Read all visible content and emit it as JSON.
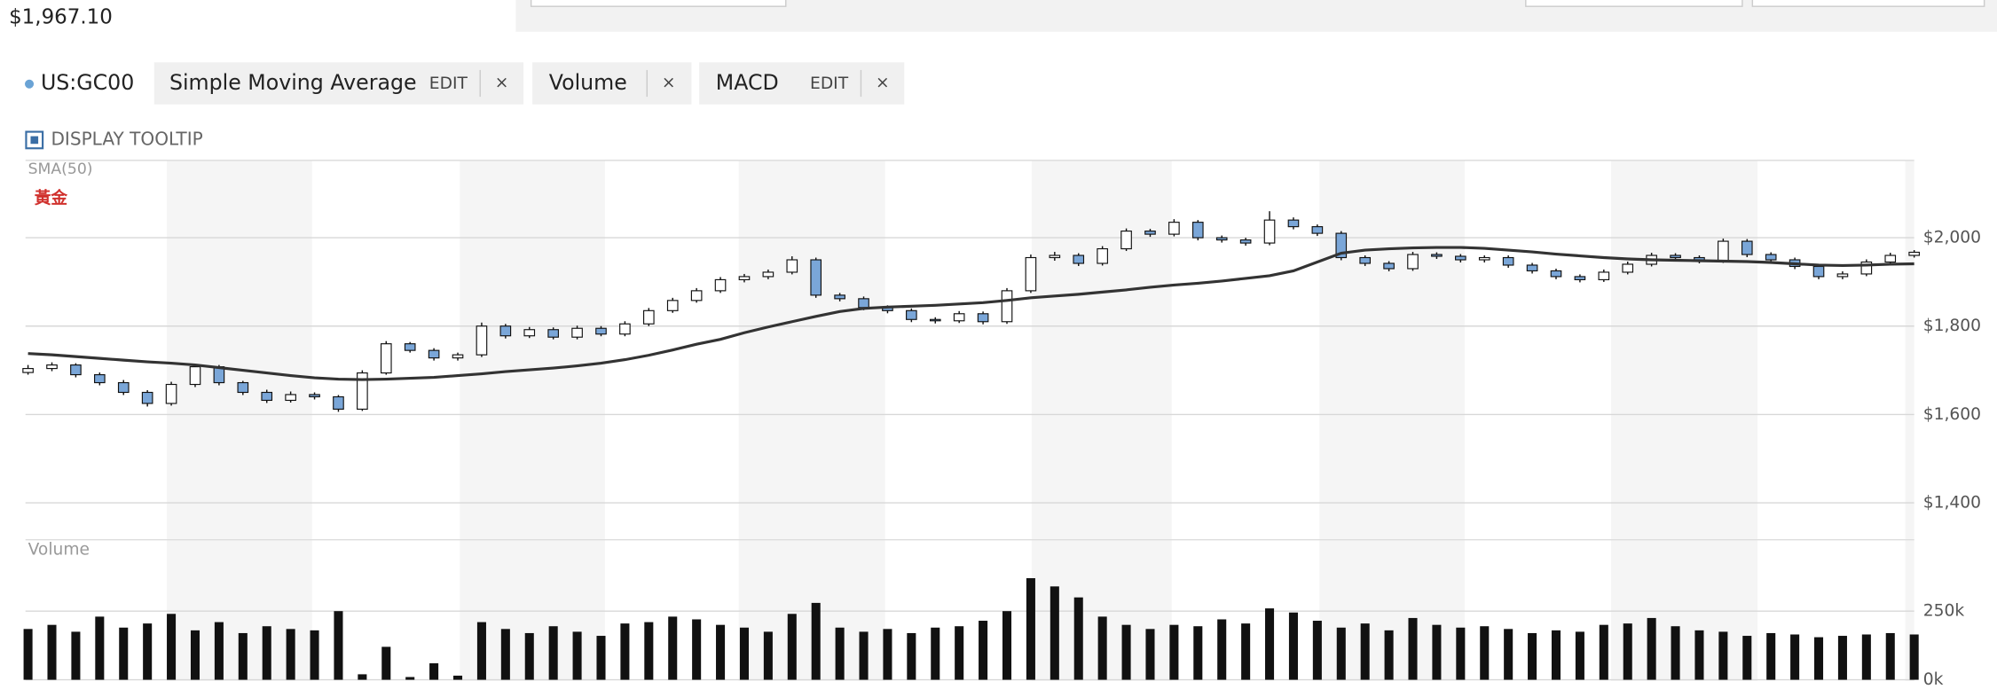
{
  "header": {
    "price": "$1,967.10"
  },
  "legend": {
    "symbol": "US:GC00",
    "chips": [
      {
        "name": "Simple Moving Average",
        "edit": "EDIT",
        "close": "×"
      },
      {
        "name": "Volume",
        "close": "×"
      },
      {
        "name": "MACD",
        "edit": "EDIT",
        "close": "×"
      }
    ]
  },
  "tooltip_toggle": "DISPLAY TOOLTIP",
  "chart_data": [
    {
      "type": "candlestick",
      "annotation": "黃金",
      "up_color": "#ffffff",
      "down_color": "#7aa6d8",
      "open": [
        1695,
        1704,
        1712,
        1690,
        1672,
        1650,
        1625,
        1668,
        1708,
        1672,
        1650,
        1632,
        1645,
        1640,
        1612,
        1694,
        1760,
        1745,
        1728,
        1735,
        1800,
        1778,
        1792,
        1775,
        1795,
        1782,
        1805,
        1835,
        1858,
        1880,
        1905,
        1912,
        1922,
        1950,
        1870,
        1862,
        1842,
        1835,
        1815,
        1812,
        1828,
        1810,
        1880,
        1955,
        1960,
        1942,
        1975,
        2015,
        2008,
        2035,
        2000,
        1995,
        1988,
        2040,
        2025,
        2010,
        1955,
        1942,
        1930,
        1962,
        1958,
        1950,
        1955,
        1938,
        1925,
        1912,
        1905,
        1922,
        1940,
        1960,
        1955,
        1948,
        1992,
        1962,
        1950,
        1935,
        1912,
        1918,
        1945,
        1960
      ],
      "high": [
        1712,
        1718,
        1716,
        1695,
        1678,
        1655,
        1674,
        1714,
        1712,
        1676,
        1656,
        1652,
        1650,
        1644,
        1700,
        1766,
        1764,
        1750,
        1740,
        1808,
        1805,
        1798,
        1797,
        1801,
        1800,
        1811,
        1841,
        1864,
        1886,
        1911,
        1918,
        1928,
        1958,
        1955,
        1875,
        1867,
        1847,
        1840,
        1820,
        1834,
        1833,
        1886,
        1962,
        1968,
        1965,
        1981,
        2021,
        2020,
        2042,
        2040,
        2005,
        2000,
        2060,
        2046,
        2030,
        2015,
        1960,
        1947,
        1968,
        1967,
        1963,
        1960,
        1960,
        1943,
        1930,
        1917,
        1928,
        1946,
        1966,
        1965,
        1960,
        1998,
        1997,
        1967,
        1955,
        1940,
        1924,
        1951,
        1966,
        1972
      ],
      "low": [
        1690,
        1698,
        1684,
        1666,
        1644,
        1618,
        1620,
        1662,
        1666,
        1644,
        1626,
        1627,
        1634,
        1606,
        1608,
        1690,
        1740,
        1722,
        1722,
        1730,
        1772,
        1773,
        1770,
        1770,
        1777,
        1777,
        1800,
        1830,
        1853,
        1875,
        1899,
        1906,
        1917,
        1864,
        1856,
        1836,
        1829,
        1809,
        1806,
        1807,
        1804,
        1805,
        1875,
        1948,
        1936,
        1937,
        1970,
        2002,
        2003,
        1994,
        1989,
        1982,
        1983,
        2019,
        2004,
        1949,
        1936,
        1924,
        1925,
        1952,
        1944,
        1944,
        1932,
        1919,
        1906,
        1899,
        1900,
        1917,
        1935,
        1949,
        1942,
        1943,
        1956,
        1944,
        1929,
        1906,
        1906,
        1913,
        1940,
        1955
      ],
      "close": [
        1704,
        1712,
        1690,
        1672,
        1650,
        1625,
        1668,
        1708,
        1672,
        1650,
        1632,
        1645,
        1640,
        1612,
        1694,
        1760,
        1745,
        1728,
        1735,
        1800,
        1778,
        1792,
        1775,
        1795,
        1782,
        1805,
        1835,
        1858,
        1880,
        1905,
        1912,
        1922,
        1950,
        1870,
        1862,
        1842,
        1835,
        1815,
        1812,
        1828,
        1810,
        1880,
        1955,
        1960,
        1942,
        1975,
        2015,
        2008,
        2035,
        2000,
        1995,
        1988,
        2040,
        2025,
        2010,
        1955,
        1942,
        1930,
        1962,
        1958,
        1950,
        1955,
        1938,
        1925,
        1912,
        1905,
        1922,
        1940,
        1960,
        1955,
        1948,
        1992,
        1962,
        1950,
        1935,
        1912,
        1918,
        1945,
        1960,
        1967.1
      ],
      "series": [
        {
          "name": "SMA(50)",
          "color": "#333333",
          "values": [
            1738,
            1735,
            1731,
            1727,
            1723,
            1719,
            1716,
            1712,
            1706,
            1700,
            1694,
            1688,
            1683,
            1680,
            1679,
            1680,
            1682,
            1684,
            1688,
            1692,
            1697,
            1701,
            1705,
            1710,
            1716,
            1724,
            1734,
            1746,
            1759,
            1770,
            1785,
            1798,
            1810,
            1822,
            1833,
            1840,
            1843,
            1845,
            1847,
            1850,
            1853,
            1858,
            1864,
            1868,
            1872,
            1877,
            1882,
            1888,
            1893,
            1897,
            1902,
            1908,
            1914,
            1925,
            1945,
            1965,
            1972,
            1975,
            1977,
            1978,
            1978,
            1976,
            1972,
            1968,
            1963,
            1959,
            1955,
            1952,
            1950,
            1949,
            1948,
            1947,
            1946,
            1944,
            1941,
            1938,
            1937,
            1938,
            1940,
            1941
          ]
        }
      ],
      "ylim": [
        1377,
        2175
      ],
      "yticks": [
        {
          "value": 1400,
          "label": "$1,400"
        },
        {
          "value": 1600,
          "label": "$1,600"
        },
        {
          "value": 1800,
          "label": "$1,800"
        },
        {
          "value": 2000,
          "label": "$2,000"
        }
      ],
      "grid": true
    },
    {
      "type": "bar",
      "title": "Volume",
      "color": "#111111",
      "values": [
        185000,
        200000,
        175000,
        230000,
        190000,
        205000,
        240000,
        180000,
        210000,
        170000,
        195000,
        185000,
        180000,
        250000,
        20000,
        120000,
        10000,
        60000,
        15000,
        210000,
        185000,
        170000,
        195000,
        175000,
        160000,
        205000,
        210000,
        230000,
        220000,
        200000,
        190000,
        175000,
        240000,
        280000,
        190000,
        175000,
        185000,
        170000,
        190000,
        195000,
        215000,
        250000,
        370000,
        340000,
        300000,
        230000,
        200000,
        185000,
        200000,
        195000,
        220000,
        205000,
        260000,
        245000,
        215000,
        190000,
        205000,
        180000,
        225000,
        200000,
        190000,
        195000,
        185000,
        170000,
        180000,
        175000,
        200000,
        205000,
        225000,
        195000,
        180000,
        175000,
        160000,
        170000,
        165000,
        155000,
        160000,
        165000,
        170000,
        165000
      ],
      "ylim": [
        0,
        510000
      ],
      "yticks": [
        {
          "value": 0,
          "label": "0k"
        },
        {
          "value": 250000,
          "label": "250k"
        }
      ],
      "grid": true
    }
  ]
}
